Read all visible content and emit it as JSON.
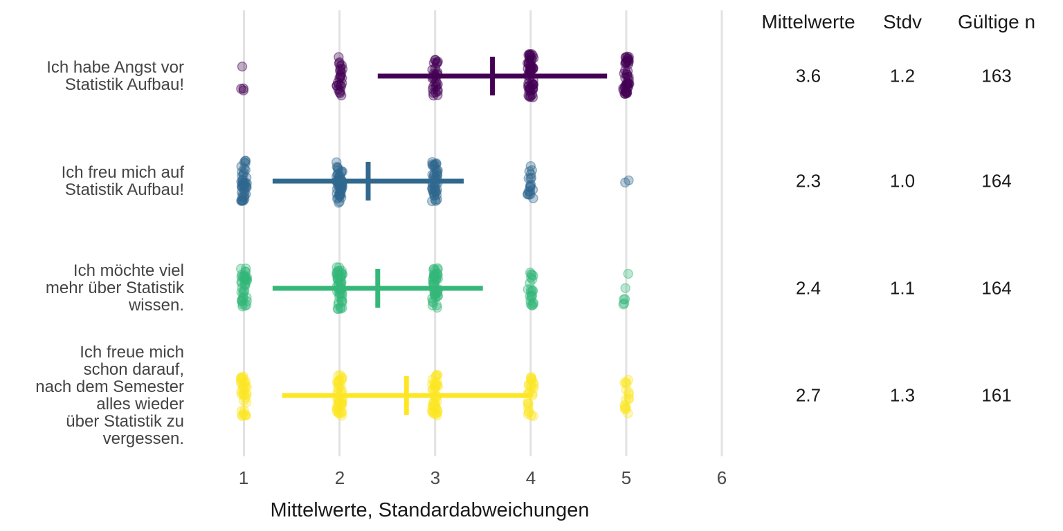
{
  "chart_data": {
    "type": "scatter",
    "subtype": "jittered-dotplot-with-mean-sd",
    "title": "",
    "xlabel": "Mittelwerte, Standardabweichungen",
    "ylabel": "",
    "xlim": [
      1,
      6
    ],
    "x_ticks": [
      "1",
      "2",
      "3",
      "4",
      "5",
      "6"
    ],
    "grid": "vertical-gridlines-only",
    "grid_color": "#e2e2e2",
    "background": "#ffffff",
    "items": [
      {
        "label": "Ich habe Angst vor\nStatistik Aufbau!",
        "color": "#440154",
        "mean": 3.6,
        "sd": 1.2,
        "n": 163,
        "mean_label": "3.6",
        "sd_label": "1.2",
        "n_label": "163",
        "jitter_counts": {
          "1": 4,
          "2": 26,
          "3": 30,
          "4": 58,
          "5": 45
        },
        "jitter_spread": {
          "1": 22,
          "2": 28,
          "3": 29,
          "4": 32,
          "5": 30
        }
      },
      {
        "label": "Ich freu mich auf\nStatistik Aufbau!",
        "color": "#31688e",
        "mean": 2.3,
        "sd": 1.0,
        "n": 164,
        "mean_label": "2.3",
        "sd_label": "1.0",
        "n_label": "164",
        "jitter_counts": {
          "1": 45,
          "2": 52,
          "3": 46,
          "4": 19,
          "5": 2
        },
        "jitter_spread": {
          "1": 30,
          "2": 32,
          "3": 30,
          "4": 26,
          "5": 5
        }
      },
      {
        "label": "Ich möchte viel\nmehr über Statistik\nwissen.",
        "color": "#35b779",
        "mean": 2.4,
        "sd": 1.1,
        "n": 164,
        "mean_label": "2.4",
        "sd_label": "1.1",
        "n_label": "164",
        "jitter_counts": {
          "1": 40,
          "2": 50,
          "3": 46,
          "4": 22,
          "5": 6
        },
        "jitter_spread": {
          "1": 29,
          "2": 31,
          "3": 30,
          "4": 28,
          "5": 24
        }
      },
      {
        "label": "Ich freue mich\nschon darauf,\nnach dem Semester\nalles wieder\nüber Statistik zu\nvergessen.",
        "color": "#fde725",
        "mean": 2.7,
        "sd": 1.3,
        "n": 161,
        "mean_label": "2.7",
        "sd_label": "1.3",
        "n_label": "161",
        "jitter_counts": {
          "1": 35,
          "2": 42,
          "3": 42,
          "4": 26,
          "5": 16
        },
        "jitter_spread": {
          "1": 30,
          "2": 32,
          "3": 30,
          "4": 30,
          "5": 28
        }
      }
    ]
  },
  "table": {
    "headers": [
      "Mittelwerte",
      "Stdv",
      "Gültige n"
    ]
  }
}
